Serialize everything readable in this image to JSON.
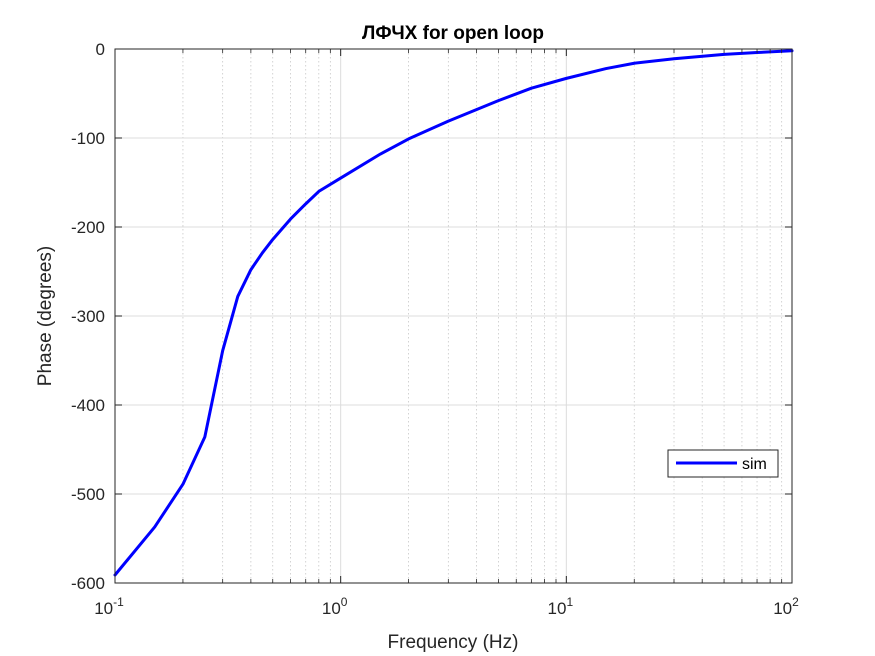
{
  "chart_data": {
    "type": "line",
    "title": "ЛФЧХ for open loop",
    "xlabel": "Frequency (Hz)",
    "ylabel": "Phase (degrees)",
    "xscale": "log",
    "xlim": [
      0.1,
      100
    ],
    "ylim": [
      -600,
      0
    ],
    "grid": true,
    "minor_grid": true,
    "legend": {
      "entries": [
        "sim"
      ],
      "location": "lower-right"
    },
    "xticks": [
      {
        "base": "10",
        "exp": "-1"
      },
      {
        "base": "10",
        "exp": "0"
      },
      {
        "base": "10",
        "exp": "1"
      },
      {
        "base": "10",
        "exp": "2"
      }
    ],
    "yticks": [
      "0",
      "-100",
      "-200",
      "-300",
      "-400",
      "-500",
      "-600"
    ],
    "series": [
      {
        "name": "sim",
        "color": "#0000ff",
        "x": [
          0.1,
          0.15,
          0.2,
          0.25,
          0.3,
          0.35,
          0.4,
          0.45,
          0.5,
          0.6,
          0.7,
          0.8,
          1,
          1.5,
          2,
          3,
          5,
          7,
          10,
          15,
          20,
          30,
          50,
          70,
          100
        ],
        "y": [
          -591,
          -537,
          -489,
          -436,
          -339,
          -278,
          -248,
          -229,
          -214,
          -191,
          -174,
          -160,
          -145,
          -118,
          -101,
          -81,
          -58,
          -44,
          -33,
          -22,
          -16,
          -11,
          -6,
          -4,
          -2
        ]
      }
    ]
  }
}
